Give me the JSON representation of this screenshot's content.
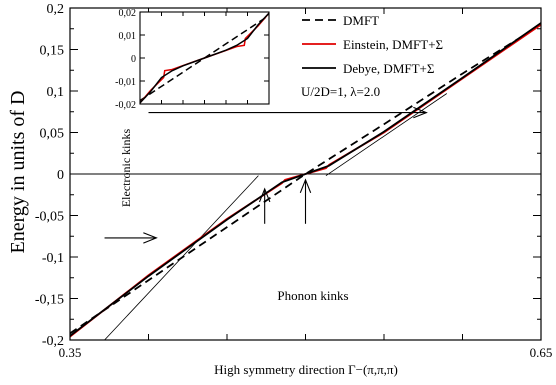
{
  "chart_data": [
    {
      "type": "line",
      "ylabel": "Energy in units of D",
      "xlabel": "High symmetry direction Γ−(π,π,π)",
      "xlim": [
        0.35,
        0.65
      ],
      "ylim": [
        -0.2,
        0.2
      ],
      "x_tick_labels": [
        "0.35",
        "0.65"
      ],
      "x_tick_values": [
        0.35,
        0.65
      ],
      "y_tick_labels": [
        "-0,2",
        "-0,15",
        "-0,1",
        "-0,05",
        "0",
        "0,05",
        "0,1",
        "0,15",
        "0,2"
      ],
      "y_tick_values": [
        -0.2,
        -0.15,
        -0.1,
        -0.05,
        0,
        0.05,
        0.1,
        0.15,
        0.2
      ],
      "legend_position": "top-right",
      "series": [
        {
          "name": "DMFT",
          "color": "#000000",
          "dashed": true,
          "x": [
            0.35,
            0.4,
            0.45,
            0.5,
            0.55,
            0.6,
            0.65
          ],
          "y": [
            -0.192,
            -0.128,
            -0.064,
            0.0,
            0.06,
            0.121,
            0.18
          ]
        },
        {
          "name": "Einstein, DMFT+Σ",
          "color": "#e00000",
          "dashed": false,
          "x": [
            0.35,
            0.4,
            0.45,
            0.485,
            0.487,
            0.5,
            0.513,
            0.515,
            0.55,
            0.6,
            0.65
          ],
          "y": [
            -0.196,
            -0.122,
            -0.054,
            -0.011,
            -0.007,
            0.0,
            0.007,
            0.011,
            0.05,
            0.115,
            0.18
          ]
        },
        {
          "name": "Debye, DMFT+Σ",
          "color": "#000000",
          "dashed": false,
          "x": [
            0.35,
            0.4,
            0.45,
            0.485,
            0.5,
            0.515,
            0.55,
            0.6,
            0.65
          ],
          "y": [
            -0.195,
            -0.123,
            -0.055,
            -0.01,
            0.0,
            0.01,
            0.051,
            0.116,
            0.182
          ]
        }
      ],
      "reference_lines": [
        {
          "x": [
            0.372,
            0.47
          ],
          "y": [
            -0.2,
            -0.002
          ]
        },
        {
          "x": [
            0.513,
            0.59
          ],
          "y": [
            -0.002,
            0.097
          ]
        }
      ],
      "annotations": {
        "params": "U/2D=1, λ=2.0",
        "phonon": "Phonon kinks",
        "electronic": "Electronic kinks"
      },
      "arrows": [
        {
          "from": [
            0.372,
            -0.077
          ],
          "to": [
            0.405,
            -0.077
          ]
        },
        {
          "from": [
            0.4,
            0.074
          ],
          "to": [
            0.577,
            0.074
          ]
        },
        {
          "from": [
            0.474,
            -0.06
          ],
          "to": [
            0.474,
            -0.018
          ]
        },
        {
          "from": [
            0.5,
            -0.06
          ],
          "to": [
            0.5,
            -0.007
          ]
        }
      ]
    },
    {
      "type": "line",
      "xlim": [
        0.47,
        0.53
      ],
      "ylim": [
        -0.02,
        0.02
      ],
      "y_tick_labels": [
        "-0,02",
        "-0,01",
        "0",
        "0,01",
        "0,02"
      ],
      "y_tick_values": [
        -0.02,
        -0.01,
        0,
        0.01,
        0.02
      ],
      "series": [
        {
          "name": "DMFT",
          "color": "#000000",
          "dashed": true,
          "x": [
            0.47,
            0.53
          ],
          "y": [
            -0.0185,
            0.0185
          ]
        },
        {
          "name": "Einstein, DMFT+Σ",
          "color": "#e00000",
          "dashed": false,
          "x": [
            0.47,
            0.475,
            0.481,
            0.4815,
            0.485,
            0.49,
            0.5,
            0.51,
            0.515,
            0.5185,
            0.519,
            0.525,
            0.53
          ],
          "y": [
            -0.0195,
            -0.014,
            -0.0085,
            -0.0055,
            -0.005,
            -0.0033,
            0.0,
            0.0033,
            0.005,
            0.0055,
            0.0085,
            0.014,
            0.0195
          ]
        },
        {
          "name": "Debye, DMFT+Σ",
          "color": "#000000",
          "dashed": false,
          "x": [
            0.47,
            0.475,
            0.48,
            0.485,
            0.49,
            0.5,
            0.51,
            0.515,
            0.52,
            0.525,
            0.53
          ],
          "y": [
            -0.0195,
            -0.0145,
            -0.0085,
            -0.0055,
            -0.0034,
            0.0,
            0.0034,
            0.0055,
            0.0085,
            0.0145,
            0.0195
          ]
        }
      ]
    }
  ]
}
